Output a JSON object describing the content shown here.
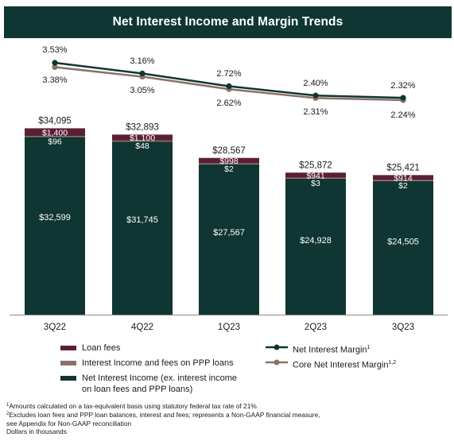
{
  "title": "Net Interest Income and Margin Trends",
  "colors": {
    "title_bar": "#0f3632",
    "loan_fees": "#5b1f35",
    "ppp": "#8a7266",
    "nii": "#0f3632",
    "nim_line": "#0f3632",
    "core_nim_line": "#8a7266",
    "axis": "#8c8c8c"
  },
  "legend": {
    "loan_fees": "Loan fees",
    "ppp": "Interest Income and fees on PPP loans",
    "nii_line1": "Net Interest Income (ex. interest income",
    "nii_line2": "on loan fees and PPP loans)",
    "nim": "Net Interest Margin",
    "nim_sup": "1",
    "core_nim": "Core Net Interest Margin",
    "core_nim_sup": "1,2"
  },
  "footnotes": {
    "fn1_mark": "1",
    "fn1": "Amounts calculated on a tax-equivalent basis using statutory federal tax rate of 21%",
    "fn2_mark": "2",
    "fn2_line1": "Excludes loan fees and PPP loan balances, interest and fees; represents a Non-GAAP financial measure,",
    "fn2_line2": "see Appendix for Non-GAAP reconciliation",
    "fn3": "Dollars in thousands"
  },
  "chart_data": {
    "type": "bar",
    "stacked": true,
    "categories": [
      "3Q22",
      "4Q22",
      "1Q23",
      "2Q23",
      "3Q23"
    ],
    "series": [
      {
        "name": "Net Interest Income (ex. interest income on loan fees and PPP loans)",
        "values": [
          32599,
          31745,
          27567,
          24928,
          24505
        ],
        "labels": [
          "$32,599",
          "$31,745",
          "$27,567",
          "$24,928",
          "$24,505"
        ]
      },
      {
        "name": "Interest Income and fees on PPP loans",
        "values": [
          96,
          48,
          2,
          3,
          2
        ],
        "labels": [
          "$96",
          "$48",
          "$2",
          "$3",
          "$2"
        ]
      },
      {
        "name": "Loan fees",
        "values": [
          1400,
          1100,
          998,
          941,
          914
        ],
        "labels": [
          "$1,400",
          "$1,100",
          "$998",
          "$941",
          "$914"
        ]
      }
    ],
    "totals": [
      34095,
      32893,
      28567,
      25872,
      25421
    ],
    "total_labels": [
      "$34,095",
      "$32,893",
      "$28,567",
      "$25,872",
      "$25,421"
    ],
    "lines": [
      {
        "name": "Net Interest Margin",
        "values": [
          3.53,
          3.16,
          2.72,
          2.4,
          2.32
        ],
        "labels": [
          "3.53%",
          "3.16%",
          "2.72%",
          "2.40%",
          "2.32%"
        ]
      },
      {
        "name": "Core Net Interest Margin",
        "values": [
          3.38,
          3.05,
          2.62,
          2.31,
          2.24
        ],
        "labels": [
          "3.38%",
          "3.05%",
          "2.62%",
          "2.31%",
          "2.24%"
        ]
      }
    ]
  }
}
